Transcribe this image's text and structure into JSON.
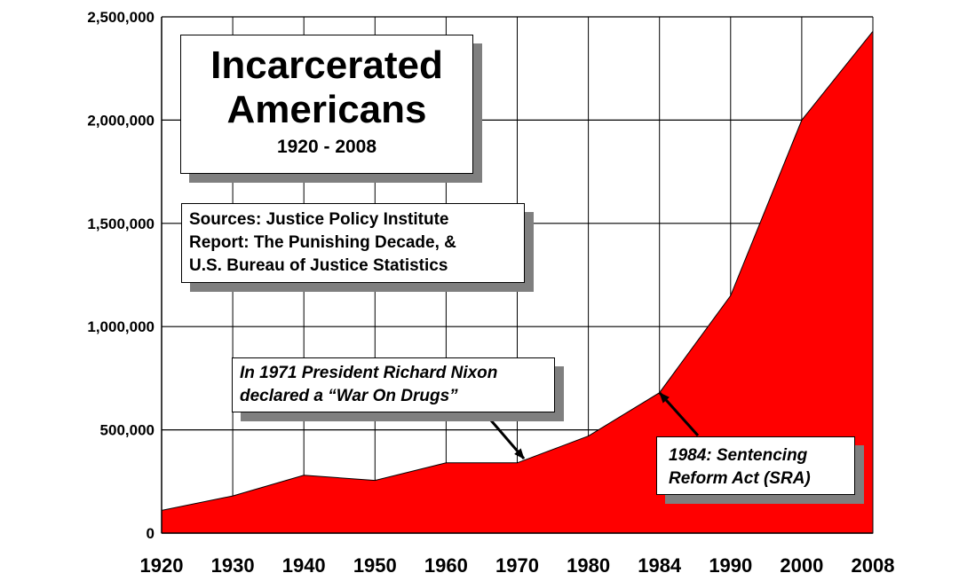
{
  "chart_data": {
    "type": "area",
    "title": "Incarcerated Americans",
    "subtitle": "1920 - 2008",
    "x": [
      1920,
      1930,
      1940,
      1950,
      1960,
      1970,
      1980,
      1984,
      1990,
      2000,
      2008
    ],
    "x_tick_labels": [
      "1920",
      "1930",
      "1940",
      "1950",
      "1960",
      "1970",
      "1980",
      "1984",
      "1990",
      "2000",
      "2008"
    ],
    "series": [
      {
        "values": [
          110000,
          180000,
          280000,
          255000,
          340000,
          340000,
          470000,
          680000,
          1150000,
          2000000,
          2430000
        ],
        "color": "#ff0000"
      }
    ],
    "ylim": [
      0,
      2500000
    ],
    "y_ticks": [
      0,
      500000,
      1000000,
      1500000,
      2000000,
      2500000
    ],
    "y_tick_labels": [
      "0",
      "500,000",
      "1,000,000",
      "1,500,000",
      "2,000,000",
      "2,500,000"
    ],
    "grid": true,
    "sources": [
      "Sources: Justice Policy Institute",
      "Report: The Punishing Decade, &",
      "U.S. Bureau of Justice Statistics"
    ],
    "annotations": [
      {
        "id": "nixon",
        "lines": [
          "In 1971 President Richard Nixon",
          "declared a “War On Drugs”"
        ],
        "points_to_x": 1970
      },
      {
        "id": "sra",
        "lines": [
          "1984: Sentencing",
          "Reform Act (SRA)"
        ],
        "points_to_x": 1984
      }
    ]
  }
}
